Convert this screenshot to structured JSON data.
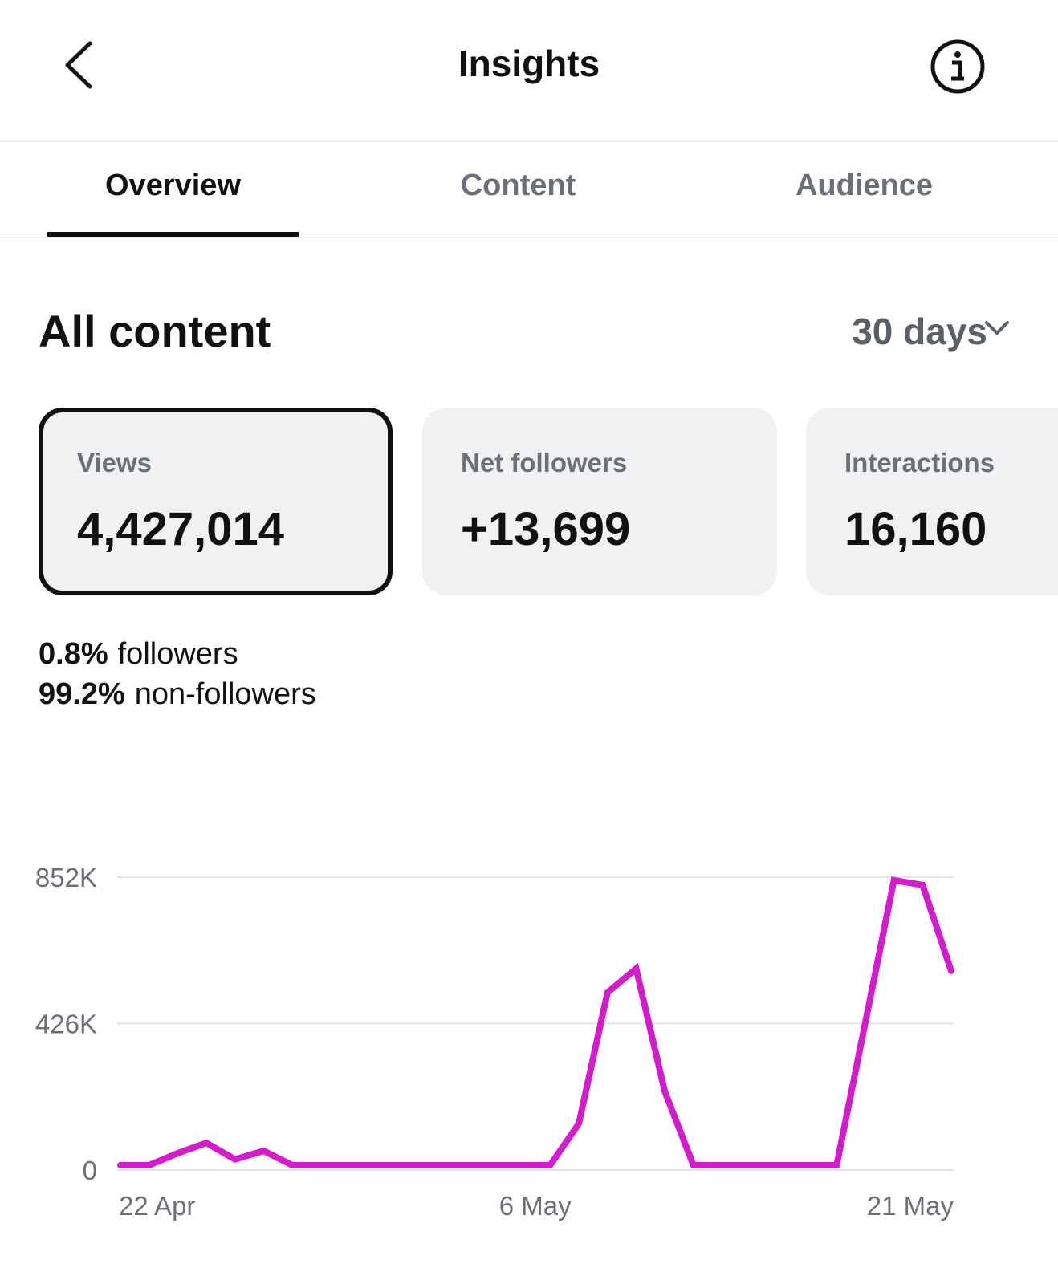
{
  "header": {
    "title": "Insights"
  },
  "tabs": [
    "Overview",
    "Content",
    "Audience"
  ],
  "section": {
    "title": "All content",
    "period": "30 days"
  },
  "cards": [
    {
      "label": "Views",
      "value": "4,427,014"
    },
    {
      "label": "Net followers",
      "value": "+13,699"
    },
    {
      "label": "Interactions",
      "value": "16,160"
    }
  ],
  "breakdown": [
    {
      "value": "0.8%",
      "label": "followers"
    },
    {
      "value": "99.2%",
      "label": "non-followers"
    }
  ],
  "chart_data": {
    "type": "line",
    "categories": [
      "22 Apr",
      null,
      null,
      null,
      null,
      null,
      null,
      null,
      null,
      null,
      null,
      null,
      null,
      null,
      "6 May",
      null,
      null,
      null,
      null,
      null,
      null,
      null,
      null,
      null,
      null,
      null,
      null,
      null,
      null,
      "21 May"
    ],
    "values": [
      0,
      0,
      35000,
      65000,
      17000,
      42000,
      0,
      0,
      0,
      0,
      0,
      0,
      0,
      0,
      0,
      0,
      121000,
      502000,
      572000,
      215000,
      0,
      0,
      0,
      0,
      0,
      0,
      415000,
      829000,
      815000,
      565000
    ],
    "color": "#d41bce",
    "ylim": [
      0,
      852000
    ],
    "yticks": [
      0,
      {
        "value": 426000,
        "label": "426K"
      },
      {
        "value": 852000,
        "label": "852K"
      }
    ],
    "grid": true
  }
}
